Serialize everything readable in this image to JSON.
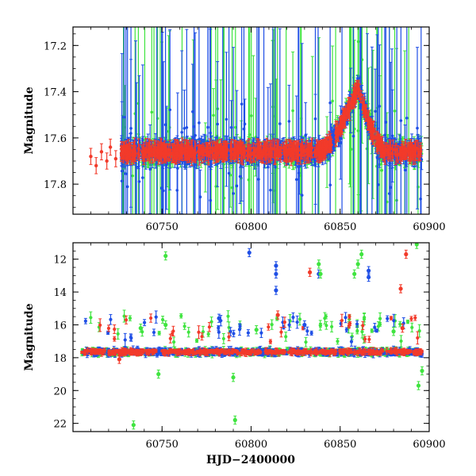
{
  "colors": {
    "blue": "#1f4fe6",
    "green": "#3fe43f",
    "red": "#f23a2a"
  },
  "chart_data": [
    {
      "type": "scatter",
      "xlabel": "",
      "ylabel": "Magnitude",
      "xlim": [
        60700,
        60900
      ],
      "ylim": [
        17.93,
        17.12
      ],
      "y_inverted": true,
      "xticks": [
        60750,
        60800,
        60850,
        60900
      ],
      "yticks": [
        17.2,
        17.4,
        17.6,
        17.8
      ],
      "baseline": {
        "x_start": 60727,
        "x_end": 60896,
        "mag": 17.66
      },
      "brightening": {
        "x_start": 60838,
        "x_peak": 60860,
        "x_end": 60876,
        "peak_mag": 17.38
      },
      "series": [
        {
          "color": "blue",
          "error_bars": true
        },
        {
          "color": "green",
          "error_bars": true
        },
        {
          "color": "red",
          "error_bars": true,
          "early_points": [
            [
              60710,
              17.68
            ],
            [
              60713,
              17.72
            ],
            [
              60716,
              17.66
            ],
            [
              60719,
              17.7
            ],
            [
              60721,
              17.64
            ],
            [
              60724,
              17.69
            ]
          ]
        }
      ]
    },
    {
      "type": "scatter",
      "xlabel": "HJD−2400000",
      "ylabel": "Magnitude",
      "xlim": [
        60700,
        60900
      ],
      "ylim": [
        22.5,
        11.0
      ],
      "y_inverted": true,
      "xticks": [
        60750,
        60800,
        60850,
        60900
      ],
      "yticks": [
        12,
        14,
        16,
        18,
        20,
        22
      ],
      "baseline": {
        "x_start": 60705,
        "x_end": 60896,
        "mag": 17.65
      },
      "outliers": [
        {
          "color": "blue",
          "x": 60799,
          "y": 11.6
        },
        {
          "color": "blue",
          "x": 60814,
          "y": 12.4
        },
        {
          "color": "blue",
          "x": 60814,
          "y": 12.9
        },
        {
          "color": "blue",
          "x": 60814,
          "y": 13.9
        },
        {
          "color": "blue",
          "x": 60782,
          "y": 15.6
        },
        {
          "color": "blue",
          "x": 60838,
          "y": 12.9
        },
        {
          "color": "blue",
          "x": 60866,
          "y": 12.7
        },
        {
          "color": "blue",
          "x": 60866,
          "y": 13.1
        },
        {
          "color": "blue",
          "x": 60830,
          "y": 16.0
        },
        {
          "color": "green",
          "x": 60752,
          "y": 11.8
        },
        {
          "color": "green",
          "x": 60838,
          "y": 12.3
        },
        {
          "color": "green",
          "x": 60839,
          "y": 12.9
        },
        {
          "color": "green",
          "x": 60858,
          "y": 12.9
        },
        {
          "color": "green",
          "x": 60860,
          "y": 12.3
        },
        {
          "color": "green",
          "x": 60862,
          "y": 11.7
        },
        {
          "color": "green",
          "x": 60893,
          "y": 11.1
        },
        {
          "color": "green",
          "x": 60734,
          "y": 22.1
        },
        {
          "color": "green",
          "x": 60791,
          "y": 21.8
        },
        {
          "color": "green",
          "x": 60894,
          "y": 19.7
        },
        {
          "color": "green",
          "x": 60896,
          "y": 18.8
        },
        {
          "color": "green",
          "x": 60748,
          "y": 19.0
        },
        {
          "color": "green",
          "x": 60790,
          "y": 19.2
        },
        {
          "color": "green",
          "x": 60738,
          "y": 16.2
        },
        {
          "color": "green",
          "x": 60752,
          "y": 16.0
        },
        {
          "color": "green",
          "x": 60803,
          "y": 16.3
        },
        {
          "color": "green",
          "x": 60880,
          "y": 16.4
        },
        {
          "color": "red",
          "x": 60833,
          "y": 12.8
        },
        {
          "color": "red",
          "x": 60887,
          "y": 11.7
        },
        {
          "color": "red",
          "x": 60884,
          "y": 13.8
        },
        {
          "color": "red",
          "x": 60815,
          "y": 15.4
        },
        {
          "color": "red",
          "x": 60885,
          "y": 16.2
        },
        {
          "color": "red",
          "x": 60726,
          "y": 18.1
        }
      ]
    }
  ]
}
